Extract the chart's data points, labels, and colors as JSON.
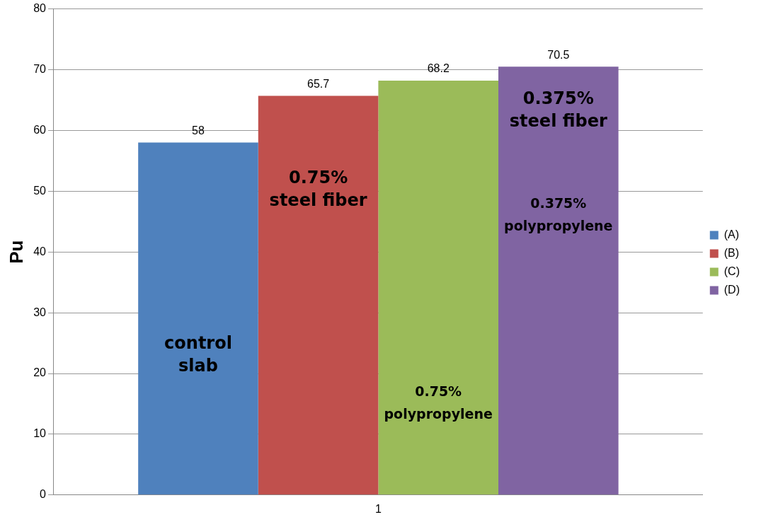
{
  "chart_data": {
    "type": "bar",
    "ylabel": "Pu",
    "categories": [
      "1"
    ],
    "series": [
      {
        "name": "(A)",
        "color": "#4f81bd",
        "values": [
          58
        ]
      },
      {
        "name": "(B)",
        "color": "#c0504d",
        "values": [
          65.7
        ]
      },
      {
        "name": "(C)",
        "color": "#9bbb59",
        "values": [
          68.2
        ]
      },
      {
        "name": "(D)",
        "color": "#8064a2",
        "values": [
          70.5
        ]
      }
    ],
    "ylim": [
      0,
      80
    ],
    "yticks": [
      0,
      10,
      20,
      30,
      40,
      50,
      60,
      70,
      80
    ],
    "grid": "y",
    "legend": "right",
    "data_labels": true,
    "annotations": [
      "control slab",
      "0.75% steel fiber",
      "0.75% polypropylene",
      "0.375% steel fiber",
      "0.375% polypropylene"
    ]
  }
}
